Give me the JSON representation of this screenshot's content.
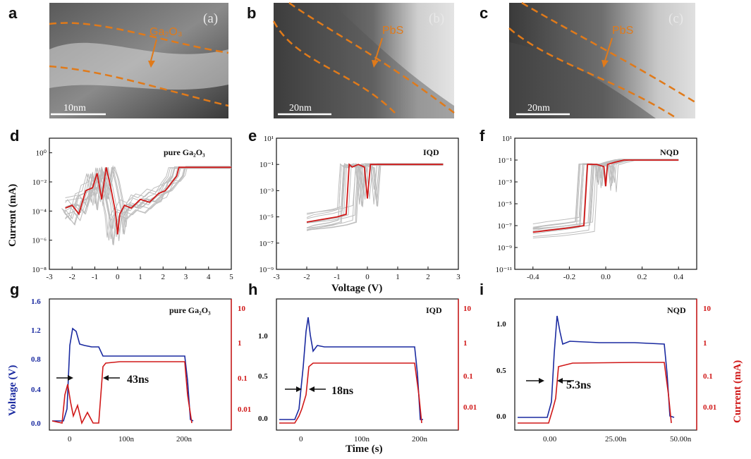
{
  "panels": {
    "a": {
      "letter": "a",
      "sub": "(a)",
      "material": "Ga₂O₃",
      "scale": "10nm"
    },
    "b": {
      "letter": "b",
      "sub": "(b)",
      "material": "PbS",
      "scale": "20nm"
    },
    "c": {
      "letter": "c",
      "sub": "(c)",
      "material": "PbS",
      "scale": "20nm"
    },
    "d": {
      "letter": "d",
      "label": "pure Ga₂O₃"
    },
    "e": {
      "letter": "e",
      "label": "IQD"
    },
    "f": {
      "letter": "f",
      "label": "NQD"
    },
    "g": {
      "letter": "g",
      "label": "pure Ga₂O₃",
      "time": "43ns"
    },
    "h": {
      "letter": "h",
      "label": "IQD",
      "time": "18ns"
    },
    "i": {
      "letter": "i",
      "label": "NQD",
      "time": "5.3ns"
    }
  },
  "axes": {
    "current_ma": "Current (mA)",
    "voltage_v": "Voltage (V)",
    "time_s": "Time (s)",
    "voltage_v_left": "Voltage (V)",
    "current_ma_right": "Current (mA)"
  },
  "colors": {
    "orange": "#e07a1a",
    "red": "#d01818",
    "blue": "#1a2aa0",
    "gray": "#bdbdbd"
  },
  "chart_data": [
    {
      "type": "line",
      "panel": "d",
      "title": "pure Ga₂O₃",
      "xlabel": "",
      "ylabel": "Current (mA)",
      "yscale": "log",
      "xlim": [
        -3,
        5
      ],
      "ylim_exp": [
        -8,
        1
      ],
      "xticks": [
        "-3",
        "-2",
        "-1",
        "0",
        "1",
        "2",
        "3",
        "4",
        "5"
      ],
      "yticks": [
        "10⁻⁸",
        "10⁻⁶",
        "10⁻⁴",
        "10⁻²",
        "10⁰"
      ],
      "series": [
        {
          "name": "highlighted sweep",
          "x": [
            -2.3,
            -2.0,
            -1.7,
            -1.4,
            -1.1,
            -0.9,
            -0.7,
            -0.5,
            -0.3,
            -0.1,
            0.0,
            0.1,
            0.3,
            0.6,
            1.0,
            1.4,
            1.8,
            2.1,
            2.4,
            2.6,
            2.7,
            3.5,
            5.0
          ],
          "log10": [
            -3.8,
            -3.6,
            -4.2,
            -2.6,
            -2.4,
            -1.4,
            -3.2,
            -1.0,
            -2.4,
            -4.0,
            -5.6,
            -4.2,
            -3.6,
            -3.8,
            -3.2,
            -3.4,
            -2.8,
            -2.6,
            -2.0,
            -1.6,
            -1.0,
            -1.0,
            -1.0
          ]
        }
      ]
    },
    {
      "type": "line",
      "panel": "e",
      "title": "IQD",
      "xlabel": "Voltage (V)",
      "ylabel": "",
      "yscale": "log",
      "xlim": [
        -3,
        3
      ],
      "ylim_exp": [
        -9,
        1
      ],
      "xticks": [
        "-3",
        "-2",
        "-1",
        "0",
        "1",
        "2",
        "3"
      ],
      "yticks": [
        "10⁻⁹",
        "10⁻⁷",
        "10⁻⁵",
        "10⁻³",
        "10⁻¹",
        "10¹"
      ],
      "series": [
        {
          "name": "highlighted sweep",
          "x": [
            -2.0,
            -1.5,
            -1.0,
            -0.7,
            -0.6,
            -0.5,
            -0.3,
            -0.1,
            0.0,
            0.1,
            0.3,
            0.5,
            0.6,
            0.7,
            1.0,
            2.5
          ],
          "log10": [
            -5.4,
            -5.2,
            -5.0,
            -4.8,
            -1.0,
            -1.2,
            -1.0,
            -1.2,
            -3.6,
            -1.0,
            -1.0,
            -1.0,
            -1.0,
            -1.0,
            -1.0,
            -1.0
          ]
        }
      ]
    },
    {
      "type": "line",
      "panel": "f",
      "title": "NQD",
      "xlabel": "",
      "ylabel": "",
      "yscale": "log",
      "xlim": [
        -0.5,
        0.5
      ],
      "ylim_exp": [
        -11,
        1
      ],
      "xticks": [
        "-0.4",
        "-0.2",
        "0.0",
        "0.2",
        "0.4"
      ],
      "yticks": [
        "10⁻¹¹",
        "10⁻⁹",
        "10⁻⁷",
        "10⁻⁵",
        "10⁻³",
        "10⁻¹",
        "10¹"
      ],
      "series": [
        {
          "name": "highlighted sweep",
          "x": [
            -0.4,
            -0.3,
            -0.2,
            -0.12,
            -0.1,
            -0.05,
            -0.01,
            0.0,
            0.01,
            0.05,
            0.1,
            0.15,
            0.2,
            0.22,
            0.4
          ],
          "log10": [
            -7.6,
            -7.4,
            -7.2,
            -7.0,
            -1.4,
            -1.4,
            -1.6,
            -3.4,
            -1.4,
            -1.2,
            -1.0,
            -1.0,
            -1.0,
            -1.0,
            -1.0
          ]
        }
      ]
    }
  ]
}
